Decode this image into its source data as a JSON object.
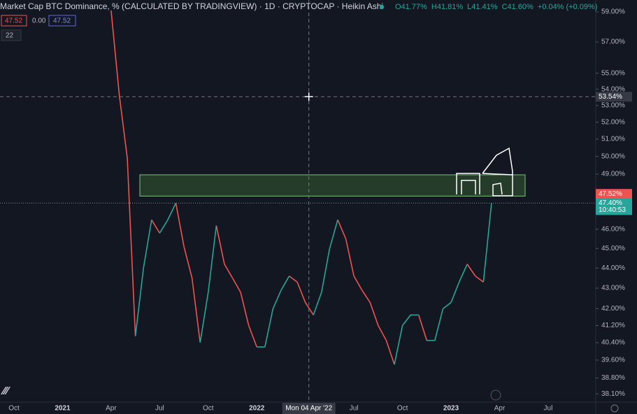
{
  "chart_data": {
    "type": "line",
    "title": "Market Cap BTC Dominance, % (CALCULATED BY TRADINGVIEW) · 1D · CRYPTOCAP · Heikin Ashi",
    "ohlc": [
      "O41.77%",
      "H41.81%",
      "L41.41%",
      "C41.60%",
      "+0.04% (+0.09%)"
    ],
    "indicator_boxes": [
      "47.52",
      "0.00",
      "47.52"
    ],
    "indicator_count": "22",
    "categories": [
      "Oct",
      null,
      null,
      null,
      null,
      null,
      "2021",
      null,
      null,
      null,
      null,
      null,
      "Apr",
      null,
      null,
      null,
      null,
      null,
      "Jul",
      null,
      null,
      null,
      null,
      null,
      "Oct",
      null,
      null,
      null,
      null,
      null,
      "2022",
      null,
      null,
      null,
      null,
      null,
      null,
      null,
      null,
      null,
      null,
      null,
      "Jul",
      null,
      null,
      null,
      null,
      null,
      "Oct",
      null,
      null,
      null,
      null,
      null,
      "2023",
      null,
      null,
      null,
      null,
      null,
      "Apr",
      null,
      null,
      null,
      null,
      null,
      "Jul",
      null
    ],
    "series": [
      {
        "name": "BTC Dominance",
        "up_color": "#26a69a",
        "down_color": "#ef5350",
        "values": [
          null,
          null,
          null,
          null,
          null,
          null,
          null,
          null,
          null,
          null,
          null,
          null,
          59.1,
          53.7,
          49.9,
          40.7,
          44.0,
          46.5,
          45.8,
          46.5,
          47.4,
          45.1,
          43.5,
          40.4,
          42.8,
          46.2,
          44.2,
          43.5,
          42.8,
          41.2,
          40.2,
          40.2,
          42.0,
          42.9,
          43.6,
          43.3,
          42.3,
          41.7,
          42.8,
          45.0,
          46.5,
          45.5,
          43.6,
          42.9,
          42.3,
          41.2,
          40.5,
          39.4,
          41.2,
          41.7,
          41.7,
          40.5,
          40.5,
          42.0,
          42.3,
          43.3,
          44.2,
          43.6,
          43.3,
          47.4,
          null,
          null,
          null,
          null,
          null,
          null,
          null,
          null
        ]
      }
    ],
    "ylim": [
      37.74,
      59.81
    ],
    "log_y": true,
    "yticks": [
      {
        "value": 59,
        "label": "59.00%"
      },
      {
        "value": 57,
        "label": "57.00%"
      },
      {
        "value": 55,
        "label": "55.00%"
      },
      {
        "value": 54,
        "label": "54.00%"
      },
      {
        "value": 53,
        "label": "53.00%"
      },
      {
        "value": 52,
        "label": "52.00%"
      },
      {
        "value": 51,
        "label": "51.00%"
      },
      {
        "value": 50,
        "label": "50.00%"
      },
      {
        "value": 49,
        "label": "49.00%"
      },
      {
        "value": 46,
        "label": "46.00%"
      },
      {
        "value": 45,
        "label": "45.00%"
      },
      {
        "value": 44,
        "label": "44.00%"
      },
      {
        "value": 43,
        "label": "43.00%"
      },
      {
        "value": 42,
        "label": "42.00%"
      },
      {
        "value": 41.2,
        "label": "41.20%"
      },
      {
        "value": 40.4,
        "label": "40.40%"
      },
      {
        "value": 39.6,
        "label": "39.60%"
      },
      {
        "value": 38.8,
        "label": "38.80%"
      },
      {
        "value": 38.1,
        "label": "38.10%"
      }
    ],
    "zone": [
      47.78,
      48.96
    ],
    "zone_color": "#2e4a2e",
    "crosshair_price": {
      "value": 53.54,
      "label": "53.54%"
    },
    "crosshair_date": "Mon 04 Apr '22",
    "last_price": {
      "value": 47.4,
      "label": "47.40%"
    },
    "countdown": "10:40:53",
    "indicator_price": {
      "value": 47.52,
      "label": "47.52%"
    }
  }
}
